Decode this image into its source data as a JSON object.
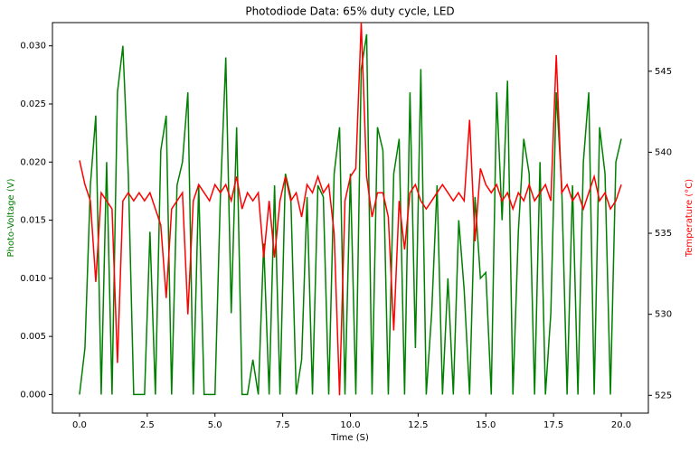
{
  "chart_data": {
    "type": "line",
    "title": "Photodiode Data: 65% duty cycle, LED",
    "xlabel": "Time (S)",
    "ylabel": "Photo-Voltage (V)",
    "y2label": "Temperature (°C)",
    "x": [
      0,
      0.2,
      0.4,
      0.6,
      0.8,
      1,
      1.2,
      1.4,
      1.6,
      1.8,
      2,
      2.2,
      2.4,
      2.6,
      2.8,
      3,
      3.2,
      3.4,
      3.6,
      3.8,
      4,
      4.2,
      4.4,
      4.6,
      4.8,
      5,
      5.2,
      5.4,
      5.6,
      5.8,
      6,
      6.2,
      6.4,
      6.6,
      6.8,
      7,
      7.2,
      7.4,
      7.6,
      7.8,
      8,
      8.2,
      8.4,
      8.6,
      8.8,
      9,
      9.2,
      9.4,
      9.6,
      9.8,
      10,
      10.2,
      10.4,
      10.6,
      10.8,
      11,
      11.2,
      11.4,
      11.6,
      11.8,
      12,
      12.2,
      12.4,
      12.6,
      12.8,
      13,
      13.2,
      13.4,
      13.6,
      13.8,
      14,
      14.2,
      14.4,
      14.6,
      14.8,
      15,
      15.2,
      15.4,
      15.6,
      15.8,
      16,
      16.2,
      16.4,
      16.6,
      16.8,
      17,
      17.2,
      17.4,
      17.6,
      17.8,
      18,
      18.2,
      18.4,
      18.6,
      18.8,
      19,
      19.2,
      19.4,
      19.6,
      19.8,
      20
    ],
    "series": [
      {
        "name": "Photo-Voltage (V)",
        "color": "#008000",
        "axis": "y",
        "values": [
          0,
          0.004,
          0.018,
          0.024,
          0,
          0.02,
          0,
          0.026,
          0.03,
          0.019,
          0,
          0,
          0,
          0.014,
          0,
          0.021,
          0.024,
          0,
          0.018,
          0.02,
          0.026,
          0,
          0.018,
          0,
          0,
          0,
          0.017,
          0.029,
          0.007,
          0.023,
          0,
          0,
          0.003,
          0,
          0.013,
          0,
          0.018,
          0,
          0.019,
          0.017,
          0,
          0.003,
          0.017,
          0,
          0.018,
          0.017,
          0,
          0.019,
          0.023,
          0,
          0.019,
          0,
          0.028,
          0.031,
          0,
          0.023,
          0.021,
          0,
          0.019,
          0.022,
          0,
          0.026,
          0.004,
          0.028,
          0,
          0.007,
          0.018,
          0,
          0.01,
          0,
          0.015,
          0.009,
          0,
          0.017,
          0.01,
          0.0105,
          0,
          0.026,
          0.015,
          0.027,
          0,
          0.014,
          0.022,
          0.019,
          0,
          0.02,
          0,
          0.007,
          0.026,
          0.018,
          0,
          0.018,
          0,
          0.02,
          0.026,
          0,
          0.023,
          0.019,
          0,
          0.02,
          0.022
        ]
      },
      {
        "name": "Temperature (°C)",
        "color": "#ff0000",
        "axis": "y2",
        "values": [
          539.5,
          538,
          537,
          532,
          537.5,
          537,
          536.5,
          527,
          537,
          537.5,
          537,
          537.5,
          537,
          537.5,
          536.5,
          535.5,
          531,
          536.5,
          537,
          537.5,
          530,
          537,
          538,
          537.5,
          537,
          538,
          537.5,
          538,
          537,
          538.5,
          536.5,
          537.5,
          537,
          537.5,
          533.5,
          537,
          533.5,
          537,
          538.5,
          537,
          537.5,
          536,
          538,
          537.5,
          538.5,
          537.5,
          538,
          535,
          525,
          537,
          538.5,
          539,
          548,
          538.5,
          536,
          537.5,
          537.5,
          536,
          529,
          537,
          534,
          537.5,
          538,
          537,
          536.5,
          537,
          537.5,
          538,
          537.5,
          537,
          537.5,
          537,
          542,
          534.5,
          539,
          538,
          537.5,
          538,
          537,
          537.5,
          536.5,
          537.5,
          537,
          538,
          537,
          537.5,
          538,
          537,
          546,
          537.5,
          538,
          537,
          537.5,
          536.5,
          537.5,
          538.5,
          537,
          537.5,
          536.5,
          537,
          538
        ]
      }
    ],
    "xlim": [
      -1,
      21
    ],
    "xticks": [
      {
        "value": 0,
        "label": "0.0"
      },
      {
        "value": 2.5,
        "label": "2.5"
      },
      {
        "value": 5,
        "label": "5.0"
      },
      {
        "value": 7.5,
        "label": "7.5"
      },
      {
        "value": 10,
        "label": "10.0"
      },
      {
        "value": 12.5,
        "label": "12.5"
      },
      {
        "value": 15,
        "label": "15.0"
      },
      {
        "value": 17.5,
        "label": "17.5"
      },
      {
        "value": 20,
        "label": "20.0"
      }
    ],
    "ylim": [
      -0.0016,
      0.032
    ],
    "yticks": [
      {
        "value": 0,
        "label": "0.000"
      },
      {
        "value": 0.005,
        "label": "0.005"
      },
      {
        "value": 0.01,
        "label": "0.010"
      },
      {
        "value": 0.015,
        "label": "0.015"
      },
      {
        "value": 0.02,
        "label": "0.020"
      },
      {
        "value": 0.025,
        "label": "0.025"
      },
      {
        "value": 0.03,
        "label": "0.030"
      }
    ],
    "y2lim": [
      523.9,
      548
    ],
    "y2ticks": [
      525,
      530,
      535,
      540,
      545
    ],
    "grid": false
  }
}
